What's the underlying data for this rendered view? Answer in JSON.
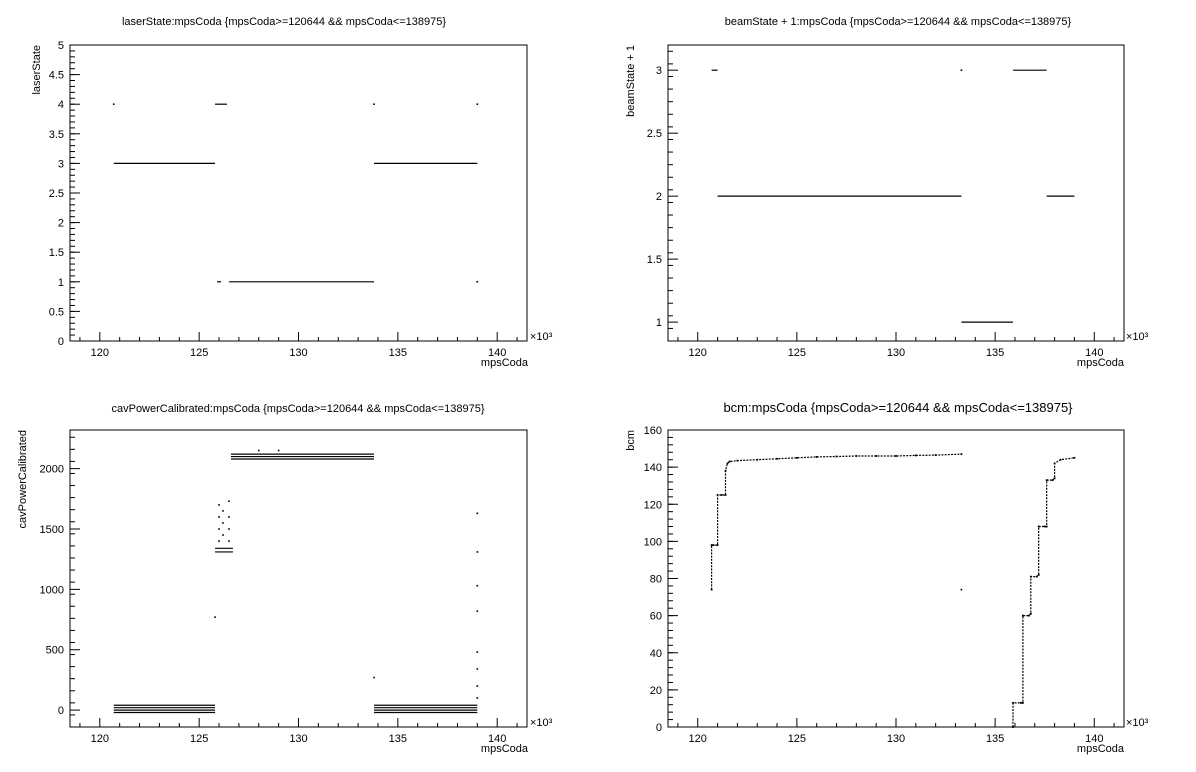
{
  "chart_data": [
    {
      "type": "scatter",
      "title": "laserState:mpsCoda {mpsCoda>=120644 && mpsCoda<=138975}",
      "xlabel": "mpsCoda",
      "ylabel": "laserState",
      "x_multiplier": "×10³",
      "xlim": [
        118.5,
        141.5
      ],
      "ylim": [
        0,
        5
      ],
      "x_ticks": [
        120,
        125,
        130,
        135,
        140
      ],
      "y_ticks": [
        0,
        0.5,
        1,
        1.5,
        2,
        2.5,
        3,
        3.5,
        4,
        4.5,
        5
      ],
      "y_tick_labels": [
        "0",
        "0.5",
        "1",
        "1.5",
        "2",
        "2.5",
        "3",
        "3.5",
        "4",
        "4.5",
        "5"
      ],
      "segments": [
        [
          120.7,
          125.8,
          3
        ],
        [
          125.8,
          126.4,
          4
        ],
        [
          125.9,
          126.1,
          1
        ],
        [
          126.5,
          133.8,
          1
        ],
        [
          133.8,
          139.0,
          3
        ]
      ],
      "points": [
        [
          120.7,
          4
        ],
        [
          133.8,
          4
        ],
        [
          139.0,
          4
        ],
        [
          139.0,
          1
        ]
      ],
      "grid": false
    },
    {
      "type": "scatter",
      "title": "beamState + 1:mpsCoda {mpsCoda>=120644 && mpsCoda<=138975}",
      "xlabel": "mpsCoda",
      "ylabel": "beamState + 1",
      "x_multiplier": "×10³",
      "xlim": [
        118.5,
        141.5
      ],
      "ylim": [
        0.85,
        3.2
      ],
      "x_ticks": [
        120,
        125,
        130,
        135,
        140
      ],
      "y_ticks": [
        1,
        1.5,
        2,
        2.5,
        3
      ],
      "y_tick_labels": [
        "1",
        "1.5",
        "2",
        "2.5",
        "3"
      ],
      "segments": [
        [
          120.7,
          121.0,
          3
        ],
        [
          121.0,
          133.3,
          2
        ],
        [
          133.3,
          135.9,
          1
        ],
        [
          135.9,
          137.6,
          3
        ],
        [
          137.6,
          139.0,
          2
        ]
      ],
      "points": [
        [
          133.3,
          3
        ]
      ],
      "grid": false
    },
    {
      "type": "scatter",
      "title": "cavPowerCalibrated:mpsCoda {mpsCoda>=120644 && mpsCoda<=138975}",
      "xlabel": "mpsCoda",
      "ylabel": "cavPowerCalibrated",
      "x_multiplier": "×10³",
      "xlim": [
        118.5,
        141.5
      ],
      "ylim": [
        -140,
        2320
      ],
      "x_ticks": [
        120,
        125,
        130,
        135,
        140
      ],
      "y_ticks": [
        0,
        500,
        1000,
        1500,
        2000
      ],
      "y_tick_labels": [
        "0",
        "500",
        "1000",
        "1500",
        "2000"
      ],
      "segments": [
        [
          120.7,
          125.8,
          40
        ],
        [
          120.7,
          125.8,
          20
        ],
        [
          120.7,
          125.8,
          0
        ],
        [
          120.7,
          125.8,
          -20
        ],
        [
          125.8,
          126.7,
          1340
        ],
        [
          125.8,
          126.7,
          1310
        ],
        [
          126.6,
          133.8,
          2120
        ],
        [
          126.6,
          133.8,
          2100
        ],
        [
          126.6,
          133.8,
          2080
        ],
        [
          133.8,
          139.0,
          40
        ],
        [
          133.8,
          139.0,
          20
        ],
        [
          133.8,
          139.0,
          0
        ],
        [
          133.8,
          139.0,
          -20
        ]
      ],
      "points": [
        [
          125.8,
          770
        ],
        [
          126.0,
          1700
        ],
        [
          126.0,
          1600
        ],
        [
          126.0,
          1500
        ],
        [
          126.0,
          1400
        ],
        [
          126.2,
          1650
        ],
        [
          126.2,
          1550
        ],
        [
          126.2,
          1450
        ],
        [
          126.5,
          1730
        ],
        [
          126.5,
          1600
        ],
        [
          126.5,
          1500
        ],
        [
          126.5,
          1400
        ],
        [
          128.0,
          2150
        ],
        [
          129.0,
          2150
        ],
        [
          133.8,
          270
        ],
        [
          139.0,
          1630
        ],
        [
          139.0,
          1310
        ],
        [
          139.0,
          1030
        ],
        [
          139.0,
          820
        ],
        [
          139.0,
          480
        ],
        [
          139.0,
          340
        ],
        [
          139.0,
          200
        ],
        [
          139.0,
          100
        ]
      ],
      "grid": false
    },
    {
      "type": "scatter",
      "title": "bcm:mpsCoda {mpsCoda>=120644 && mpsCoda<=138975}",
      "xlabel": "mpsCoda",
      "ylabel": "bcm",
      "x_multiplier": "×10³",
      "xlim": [
        118.5,
        141.5
      ],
      "ylim": [
        0,
        160
      ],
      "x_ticks": [
        120,
        125,
        130,
        135,
        140
      ],
      "y_ticks": [
        0,
        20,
        40,
        60,
        80,
        100,
        120,
        140,
        160
      ],
      "y_tick_labels": [
        "0",
        "20",
        "40",
        "60",
        "80",
        "100",
        "120",
        "140",
        "160"
      ],
      "series": [
        {
          "x": [
            120.7,
            120.7,
            120.8,
            121.0,
            121.0,
            121.2,
            121.4,
            121.4,
            121.5,
            121.6,
            122.0,
            123.0,
            124.0,
            125.0,
            126.0,
            127.0,
            128.0,
            129.0,
            130.0,
            131.0,
            132.0,
            133.3
          ]
        },
        {
          "y": [
            74,
            98,
            98,
            98,
            125,
            125,
            125,
            138,
            142,
            143,
            143.5,
            144.0,
            144.5,
            145.0,
            145.5,
            145.7,
            146.0,
            146.0,
            146.0,
            146.3,
            146.5,
            147.0
          ]
        },
        {
          "x": [
            135.9,
            135.9,
            136.3,
            136.4,
            136.4,
            136.7,
            136.8,
            136.8,
            137.1,
            137.2,
            137.2,
            137.5,
            137.6,
            137.6,
            137.9,
            138.0,
            138.0,
            138.3,
            139.0
          ]
        },
        {
          "y": [
            0,
            13,
            13,
            13,
            60,
            60,
            61,
            81,
            81,
            82,
            108,
            108,
            108,
            133,
            133,
            134,
            142,
            144,
            145
          ]
        }
      ],
      "points": [
        [
          133.3,
          74
        ]
      ],
      "grid": false
    }
  ]
}
